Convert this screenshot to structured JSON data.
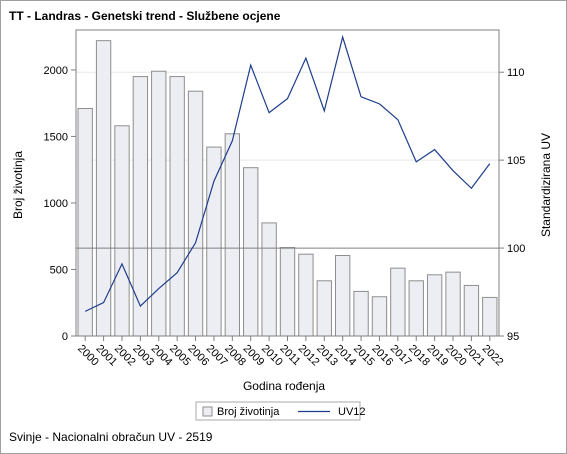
{
  "title": "TT - Landras - Genetski trend - Službene ocjene",
  "footer": "Svinje - Nacionalni obračun UV - 2519",
  "chart_data": {
    "type": "bar+line",
    "xlabel": "Godina rođenja",
    "ylabel_left": "Broj životinja",
    "ylabel_right": "Standardizirana UV",
    "categories": [
      "2000",
      "2001",
      "2002",
      "2003",
      "2004",
      "2005",
      "2006",
      "2007",
      "2008",
      "2009",
      "2010",
      "2011",
      "2012",
      "2013",
      "2014",
      "2015",
      "2016",
      "2017",
      "2018",
      "2019",
      "2020",
      "2021",
      "2022"
    ],
    "bar_series": {
      "name": "Broj životinja",
      "values": [
        1710,
        2220,
        1580,
        1950,
        1990,
        1950,
        1840,
        1420,
        1520,
        1265,
        850,
        665,
        615,
        415,
        605,
        335,
        295,
        510,
        415,
        460,
        480,
        380,
        290
      ]
    },
    "line_series": {
      "name": "UV12",
      "values": [
        96.4,
        96.9,
        99.1,
        96.7,
        97.7,
        98.6,
        100.3,
        103.8,
        106.1,
        110.4,
        107.7,
        108.5,
        110.8,
        107.8,
        112.0,
        108.6,
        108.2,
        107.3,
        104.9,
        105.6,
        104.4,
        103.4,
        104.8
      ]
    },
    "ylim_left": [
      0,
      2300
    ],
    "yticks_left": [
      0,
      500,
      1000,
      1500,
      2000
    ],
    "ylim_right": [
      95,
      112.4
    ],
    "yticks_right": [
      95,
      100,
      105,
      110
    ],
    "reference_line_right": 100,
    "legend": {
      "position": "bottom",
      "bar_label": "Broj životinja",
      "line_label": "UV12"
    },
    "colors": {
      "bar_fill": "#edeef3",
      "bar_stroke": "#8e8e8e",
      "line": "#1d3d8c",
      "grid": "#e8e8e8",
      "ref": "#808080"
    }
  }
}
